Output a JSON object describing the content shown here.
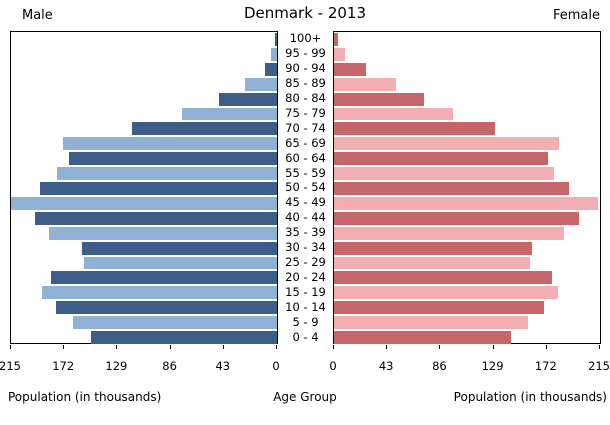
{
  "header": {
    "male_label": "Male",
    "title": "Denmark - 2013",
    "female_label": "Female"
  },
  "footer": {
    "left_xlabel": "Population (in thousands)",
    "center_xlabel": "Age Group",
    "right_xlabel": "Population (in thousands)"
  },
  "chart_data": {
    "type": "bar",
    "subtype": "population-pyramid",
    "title": "Denmark - 2013",
    "xlabel": "Population (in thousands)",
    "center_label": "Age Group",
    "xlim": [
      0,
      215
    ],
    "ticks": [
      0,
      43,
      86,
      129,
      172,
      215
    ],
    "grid": false,
    "age_groups": [
      "100+",
      "95 - 99",
      "90 - 94",
      "85 - 89",
      "80 - 84",
      "75 - 79",
      "70 - 74",
      "65 - 69",
      "60 - 64",
      "55 - 59",
      "50 - 54",
      "45 - 49",
      "40 - 44",
      "35 - 39",
      "30 - 34",
      "25 - 29",
      "20 - 24",
      "15 - 19",
      "10 - 14",
      "5 - 9",
      "0 - 4"
    ],
    "series": [
      {
        "name": "Male",
        "side": "left",
        "values": [
          2,
          5,
          10,
          26,
          47,
          77,
          117,
          173,
          168,
          178,
          192,
          215,
          196,
          184,
          158,
          156,
          183,
          190,
          179,
          165,
          150
        ]
      },
      {
        "name": "Female",
        "side": "right",
        "values": [
          3,
          9,
          26,
          50,
          73,
          96,
          130,
          182,
          173,
          178,
          190,
          213,
          198,
          186,
          160,
          158,
          176,
          181,
          170,
          157,
          143
        ]
      }
    ],
    "colors": {
      "male_dark": "#3e5e8a",
      "male_light": "#8fb1d6",
      "female_dark": "#c5666a",
      "female_light": "#f2aeb2",
      "plot_border": "#000000",
      "background": "#ffffff"
    }
  }
}
